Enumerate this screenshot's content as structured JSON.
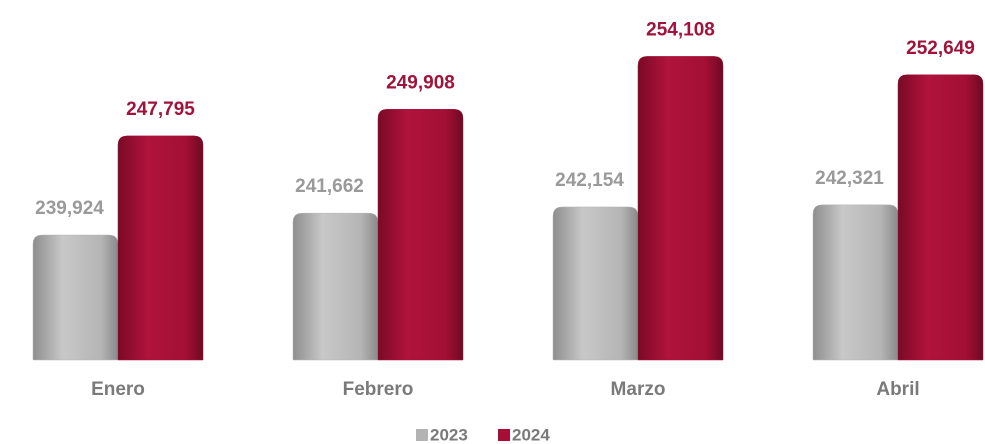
{
  "chart_data": {
    "type": "bar",
    "categories": [
      "Enero",
      "Febrero",
      "Marzo",
      "Abril"
    ],
    "series": [
      {
        "name": "2023",
        "color": "#b3b3b3",
        "values": [
          239924,
          241662,
          242154,
          242321
        ],
        "value_labels": [
          "239,924",
          "241,662",
          "242,154",
          "242,321"
        ]
      },
      {
        "name": "2024",
        "color": "#a50f35",
        "values": [
          247795,
          249908,
          254108,
          252649
        ],
        "value_labels": [
          "247,795",
          "249,908",
          "254,108",
          "252,649"
        ]
      }
    ],
    "ylim": [
      230000,
      257000
    ]
  }
}
